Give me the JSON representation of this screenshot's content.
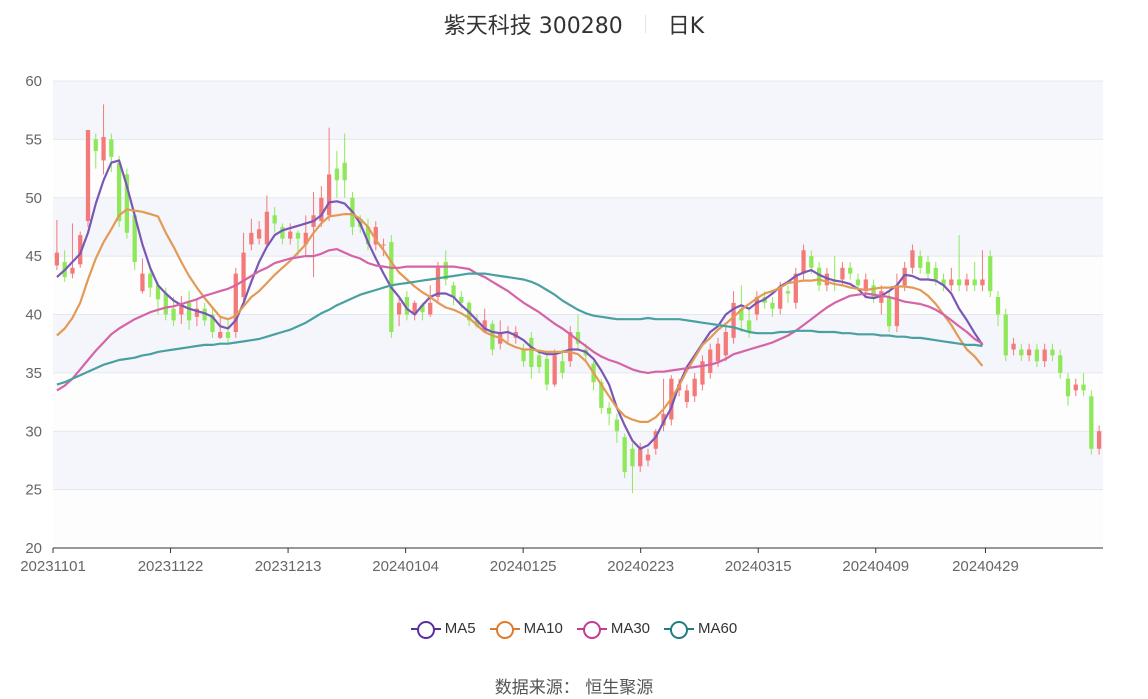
{
  "header": {
    "title": "紫天科技 300280",
    "period": "日K"
  },
  "source_text": "数据来源： 恒生聚源",
  "colors": {
    "up": "#f47a7a",
    "down": "#8fe85a",
    "grid_band": "#f4f6fb",
    "grid_line": "#e3e8f0",
    "MA5": "#7a57b6",
    "MA10": "#e39a55",
    "MA30": "#d563a8",
    "MA60": "#4aa0a0"
  },
  "legend": [
    {
      "name": "MA5",
      "color": "#5a2fa0"
    },
    {
      "name": "MA10",
      "color": "#e07a2a"
    },
    {
      "name": "MA30",
      "color": "#c43a93"
    },
    {
      "name": "MA60",
      "color": "#1f7f7f"
    }
  ],
  "chart_data": {
    "type": "candlestick",
    "ylim": [
      20,
      60
    ],
    "yticks": [
      20,
      25,
      30,
      35,
      40,
      45,
      50,
      55,
      60
    ],
    "xtick_labels": [
      "20231101",
      "20231122",
      "20231213",
      "20240104",
      "20240125",
      "20240223",
      "20240315",
      "20240409",
      "20240429"
    ],
    "xtick_index": [
      0,
      15,
      30,
      45,
      60,
      75,
      90,
      105,
      119
    ],
    "grid": true,
    "candles": [
      [
        44.2,
        45.3,
        43.8,
        48.1
      ],
      [
        44.5,
        43.2,
        42.8,
        45.5
      ],
      [
        43.5,
        44.0,
        43.1,
        47.8
      ],
      [
        44.3,
        46.8,
        44.0,
        47.1
      ],
      [
        48.0,
        55.8,
        47.5,
        55.8
      ],
      [
        55.0,
        54.0,
        52.5,
        55.5
      ],
      [
        53.2,
        55.2,
        52.0,
        58.0
      ],
      [
        55.0,
        53.5,
        52.2,
        55.5
      ],
      [
        53.0,
        48.0,
        47.5,
        53.6
      ],
      [
        52.0,
        47.0,
        46.5,
        52.5
      ],
      [
        48.5,
        44.5,
        43.8,
        49.0
      ],
      [
        42.0,
        43.5,
        41.8,
        44.8
      ],
      [
        43.5,
        42.3,
        41.5,
        44.2
      ],
      [
        42.5,
        41.3,
        40.0,
        42.8
      ],
      [
        41.8,
        40.0,
        39.5,
        42.3
      ],
      [
        40.5,
        39.5,
        39.0,
        41.5
      ],
      [
        40.0,
        41.0,
        39.2,
        41.6
      ],
      [
        41.0,
        39.5,
        38.7,
        42.0
      ],
      [
        39.8,
        40.5,
        39.0,
        41.3
      ],
      [
        40.5,
        39.5,
        39.0,
        41.0
      ],
      [
        40.0,
        38.5,
        38.0,
        40.5
      ],
      [
        38.0,
        38.5,
        37.9,
        39.8
      ],
      [
        38.5,
        38.0,
        37.5,
        39.5
      ],
      [
        38.5,
        43.5,
        38.0,
        44.0
      ],
      [
        41.5,
        45.3,
        41.0,
        47.0
      ],
      [
        46.0,
        47.0,
        45.5,
        48.2
      ],
      [
        46.5,
        47.3,
        46.0,
        48.0
      ],
      [
        46.0,
        48.8,
        45.8,
        50.2
      ],
      [
        48.5,
        47.8,
        47.0,
        49.2
      ],
      [
        47.5,
        46.5,
        46.0,
        47.8
      ],
      [
        46.5,
        47.1,
        46.0,
        47.8
      ],
      [
        47.0,
        46.5,
        45.0,
        47.2
      ],
      [
        46.0,
        47.0,
        45.0,
        48.5
      ],
      [
        47.5,
        48.5,
        43.2,
        50.5
      ],
      [
        48.0,
        50.0,
        47.5,
        51.0
      ],
      [
        48.5,
        52.0,
        48.0,
        56.0
      ],
      [
        52.5,
        51.5,
        50.0,
        54.0
      ],
      [
        53.0,
        51.5,
        50.0,
        55.5
      ],
      [
        50.0,
        47.5,
        46.8,
        50.5
      ],
      [
        48.0,
        47.5,
        47.0,
        48.5
      ],
      [
        47.5,
        46.0,
        45.5,
        48.2
      ],
      [
        46.0,
        47.5,
        45.5,
        48.0
      ],
      [
        46.0,
        46.0,
        45.0,
        46.5
      ],
      [
        46.2,
        38.5,
        38.0,
        46.8
      ],
      [
        40.0,
        41.0,
        39.0,
        41.5
      ],
      [
        41.5,
        40.0,
        39.5,
        42.0
      ],
      [
        40.0,
        41.0,
        39.5,
        41.2
      ],
      [
        40.8,
        40.2,
        39.5,
        41.0
      ],
      [
        40.0,
        41.0,
        39.8,
        42.5
      ],
      [
        41.5,
        44.0,
        41.0,
        44.5
      ],
      [
        44.5,
        43.0,
        42.5,
        45.5
      ],
      [
        42.5,
        41.5,
        40.8,
        42.8
      ],
      [
        41.5,
        41.0,
        40.5,
        42.0
      ],
      [
        41.0,
        39.5,
        39.0,
        41.2
      ],
      [
        39.5,
        39.0,
        38.8,
        40.0
      ],
      [
        38.5,
        39.5,
        38.5,
        40.5
      ],
      [
        39.2,
        37.0,
        36.5,
        39.5
      ],
      [
        37.5,
        38.5,
        37.0,
        39.5
      ],
      [
        38.5,
        38.5,
        37.5,
        39.0
      ],
      [
        38.0,
        38.5,
        37.5,
        39.0
      ],
      [
        37.0,
        36.0,
        35.5,
        37.5
      ],
      [
        38.0,
        35.5,
        34.5,
        38.5
      ],
      [
        36.5,
        35.5,
        35.0,
        37.0
      ],
      [
        36.2,
        34.0,
        33.5,
        36.5
      ],
      [
        34.0,
        36.5,
        33.8,
        37.0
      ],
      [
        36.0,
        35.0,
        34.5,
        37.0
      ],
      [
        36.0,
        38.5,
        35.5,
        39.0
      ],
      [
        38.5,
        37.5,
        37.0,
        40.0
      ],
      [
        37.0,
        36.5,
        36.0,
        37.5
      ],
      [
        35.8,
        34.2,
        33.5,
        36.0
      ],
      [
        34.2,
        32.0,
        31.5,
        34.5
      ],
      [
        32.0,
        31.5,
        30.5,
        32.5
      ],
      [
        31.0,
        30.0,
        29.0,
        31.5
      ],
      [
        29.5,
        26.5,
        26.0,
        29.8
      ],
      [
        28.5,
        27.0,
        24.7,
        29.0
      ],
      [
        27.0,
        28.5,
        26.5,
        29.0
      ],
      [
        27.5,
        28.0,
        27.0,
        28.5
      ],
      [
        28.5,
        30.0,
        28.0,
        30.2
      ],
      [
        30.5,
        31.5,
        30.0,
        34.5
      ],
      [
        31.0,
        34.5,
        30.5,
        34.8
      ],
      [
        33.5,
        34.0,
        33.0,
        34.5
      ],
      [
        32.5,
        33.5,
        32.0,
        34.0
      ],
      [
        33.0,
        34.5,
        32.5,
        35.0
      ],
      [
        34.0,
        36.0,
        33.5,
        36.5
      ],
      [
        35.0,
        37.0,
        34.5,
        37.5
      ],
      [
        36.0,
        37.5,
        35.5,
        38.0
      ],
      [
        36.5,
        38.5,
        36.0,
        39.0
      ],
      [
        38.0,
        41.0,
        37.5,
        42.0
      ],
      [
        40.5,
        39.5,
        38.5,
        42.5
      ],
      [
        39.5,
        38.5,
        38.0,
        40.5
      ],
      [
        40.0,
        41.5,
        39.5,
        42.0
      ],
      [
        41.5,
        41.0,
        40.5,
        42.0
      ],
      [
        41.0,
        40.5,
        39.8,
        41.5
      ],
      [
        40.5,
        42.3,
        40.0,
        42.8
      ],
      [
        42.0,
        41.8,
        41.0,
        42.5
      ],
      [
        41.0,
        43.5,
        40.5,
        44.0
      ],
      [
        43.5,
        45.5,
        43.0,
        46.0
      ],
      [
        45.0,
        44.0,
        43.5,
        45.5
      ],
      [
        44.0,
        42.5,
        42.0,
        44.5
      ],
      [
        42.5,
        43.5,
        42.0,
        44.0
      ],
      [
        43.0,
        42.8,
        42.0,
        45.0
      ],
      [
        43.0,
        44.0,
        42.5,
        44.5
      ],
      [
        44.0,
        43.5,
        43.0,
        44.5
      ],
      [
        43.0,
        42.5,
        42.0,
        43.5
      ],
      [
        42.0,
        43.0,
        41.5,
        43.5
      ],
      [
        42.5,
        41.5,
        41.0,
        43.0
      ],
      [
        41.0,
        42.0,
        40.0,
        42.5
      ],
      [
        41.5,
        39.0,
        38.5,
        42.0
      ],
      [
        39.0,
        42.5,
        38.5,
        43.5
      ],
      [
        42.5,
        44.0,
        42.0,
        44.5
      ],
      [
        44.0,
        45.5,
        43.5,
        46.0
      ],
      [
        45.0,
        44.0,
        43.5,
        45.5
      ],
      [
        44.5,
        43.5,
        43.0,
        45.0
      ],
      [
        44.0,
        43.0,
        42.5,
        44.5
      ],
      [
        43.0,
        42.5,
        42.0,
        43.5
      ],
      [
        42.5,
        43.0,
        42.0,
        44.0
      ],
      [
        43.0,
        42.5,
        42.0,
        46.8
      ],
      [
        42.5,
        43.0,
        42.0,
        43.5
      ],
      [
        43.0,
        42.5,
        42.0,
        44.5
      ],
      [
        42.5,
        43.0,
        42.0,
        45.5
      ],
      [
        45.0,
        42.0,
        41.5,
        45.5
      ],
      [
        41.5,
        40.0,
        39.0,
        42.0
      ],
      [
        40.0,
        36.5,
        36.0,
        40.5
      ],
      [
        37.0,
        37.5,
        36.5,
        38.0
      ],
      [
        37.0,
        36.5,
        36.0,
        37.5
      ],
      [
        36.5,
        37.0,
        36.0,
        37.5
      ],
      [
        37.0,
        36.0,
        35.5,
        37.5
      ],
      [
        36.0,
        37.0,
        35.5,
        37.5
      ],
      [
        37.0,
        36.5,
        36.0,
        37.5
      ],
      [
        36.5,
        35.0,
        34.5,
        37.0
      ],
      [
        34.5,
        33.0,
        32.2,
        35.0
      ],
      [
        33.5,
        34.0,
        33.0,
        34.5
      ],
      [
        34.0,
        33.5,
        33.0,
        35.0
      ],
      [
        33.0,
        28.5,
        28.0,
        33.5
      ],
      [
        28.5,
        30.0,
        28.0,
        30.5
      ]
    ],
    "series": [
      {
        "name": "MA5",
        "values": [
          43.2,
          43.8,
          44.5,
          45.2,
          47.0,
          49.5,
          51.5,
          53.0,
          53.2,
          51.0,
          48.5,
          46.0,
          44.0,
          42.5,
          41.8,
          41.2,
          40.8,
          40.5,
          40.3,
          40.1,
          39.8,
          39.0,
          38.8,
          39.5,
          41.0,
          42.8,
          44.5,
          45.8,
          46.8,
          47.2,
          47.4,
          47.6,
          47.8,
          48.0,
          48.5,
          49.6,
          49.7,
          49.5,
          48.8,
          47.8,
          46.2,
          44.8,
          43.5,
          42.3,
          41.5,
          40.5,
          40.0,
          40.8,
          41.5,
          41.8,
          41.8,
          41.5,
          40.8,
          40.2,
          39.5,
          38.8,
          38.5,
          38.4,
          38.5,
          38.2,
          37.8,
          37.2,
          36.8,
          36.6,
          36.6,
          36.8,
          37.0,
          37.0,
          36.8,
          36.2,
          35.2,
          34.0,
          32.0,
          30.5,
          29.2,
          28.5,
          28.8,
          29.5,
          30.8,
          32.0,
          34.0,
          35.5,
          36.5,
          37.5,
          38.5,
          39.0,
          40.0,
          40.5,
          40.8,
          40.5,
          41.0,
          41.3,
          41.8,
          42.4,
          42.8,
          43.3,
          43.6,
          43.8,
          43.4,
          43.1,
          42.9,
          42.8,
          42.6,
          42.2,
          41.5,
          41.4,
          41.6,
          42.0,
          42.5,
          43.4,
          43.3,
          43.0,
          43.0,
          42.9,
          42.5,
          41.8,
          40.5,
          39.5,
          38.4,
          37.4
        ],
        "scale_tail": true
      },
      {
        "name": "MA10",
        "values": [
          38.2,
          38.8,
          39.7,
          41.0,
          43.0,
          44.8,
          46.2,
          47.3,
          48.5,
          49.0,
          48.9,
          48.8,
          48.6,
          48.4,
          47.0,
          45.8,
          44.5,
          43.3,
          42.3,
          41.4,
          40.6,
          39.8,
          39.6,
          39.9,
          40.7,
          41.5,
          42.0,
          42.7,
          43.4,
          44.0,
          44.6,
          45.3,
          46.0,
          47.0,
          47.8,
          48.4,
          48.5,
          48.6,
          48.6,
          48.2,
          47.5,
          46.4,
          45.5,
          44.5,
          43.6,
          43.0,
          42.4,
          41.9,
          41.5,
          41.0,
          40.6,
          40.4,
          40.1,
          39.7,
          39.1,
          38.5,
          38.2,
          38.0,
          37.5,
          37.2,
          37.0,
          37.0,
          36.9,
          36.8,
          36.8,
          36.8,
          36.8,
          36.6,
          36.0,
          35.0,
          34.0,
          33.0,
          32.0,
          31.3,
          31.0,
          30.8,
          30.8,
          31.2,
          31.9,
          32.8,
          33.9,
          35.2,
          36.3,
          37.4,
          38.0,
          38.7,
          39.2,
          39.8,
          40.4,
          40.9,
          41.4,
          41.8,
          42.0,
          42.3,
          42.7,
          42.8,
          42.9,
          42.9,
          43.0,
          42.8,
          42.6,
          42.5,
          42.3,
          42.2,
          42.1,
          42.2,
          42.3,
          42.3,
          42.4,
          42.4,
          42.3,
          42.1,
          41.6,
          40.9,
          40.0,
          39.1,
          38.0,
          37.0,
          36.4,
          35.6
        ]
      },
      {
        "name": "MA30",
        "values": [
          33.5,
          33.9,
          34.5,
          35.3,
          36.1,
          36.9,
          37.6,
          38.3,
          38.8,
          39.2,
          39.6,
          39.9,
          40.2,
          40.4,
          40.6,
          40.7,
          40.9,
          41.1,
          41.3,
          41.6,
          41.8,
          42.0,
          42.2,
          42.5,
          42.9,
          43.3,
          43.7,
          44.0,
          44.4,
          44.6,
          44.8,
          44.9,
          45.0,
          45.0,
          45.2,
          45.5,
          45.6,
          45.3,
          45.0,
          44.8,
          44.4,
          44.2,
          44.1,
          44.0,
          44.0,
          44.1,
          44.1,
          44.1,
          44.1,
          44.1,
          44.1,
          44.1,
          44.0,
          43.9,
          43.5,
          43.2,
          42.8,
          42.4,
          42.0,
          41.5,
          41.0,
          40.6,
          40.2,
          39.7,
          39.2,
          38.8,
          38.3,
          37.8,
          37.3,
          36.8,
          36.4,
          36.1,
          35.9,
          35.6,
          35.3,
          35.1,
          35.0,
          35.1,
          35.1,
          35.2,
          35.3,
          35.4,
          35.5,
          35.6,
          35.7,
          35.9,
          36.2,
          36.6,
          36.8,
          37.0,
          37.2,
          37.4,
          37.6,
          37.9,
          38.2,
          38.6,
          39.1,
          39.6,
          40.1,
          40.6,
          41.0,
          41.3,
          41.6,
          41.7,
          41.8,
          41.7,
          41.6,
          41.5,
          41.3,
          41.1,
          41.0,
          40.9,
          40.7,
          40.4,
          40.0,
          39.5,
          39.0,
          38.5,
          37.9,
          37.5
        ]
      },
      {
        "name": "MA60",
        "values": [
          34.0,
          34.2,
          34.5,
          34.8,
          35.1,
          35.4,
          35.7,
          35.9,
          36.1,
          36.2,
          36.3,
          36.5,
          36.6,
          36.8,
          36.9,
          37.0,
          37.1,
          37.2,
          37.3,
          37.4,
          37.4,
          37.5,
          37.5,
          37.6,
          37.7,
          37.8,
          37.9,
          38.1,
          38.3,
          38.5,
          38.7,
          39.0,
          39.3,
          39.7,
          40.1,
          40.4,
          40.8,
          41.1,
          41.4,
          41.7,
          41.9,
          42.1,
          42.3,
          42.5,
          42.6,
          42.7,
          42.8,
          42.9,
          43.0,
          43.1,
          43.2,
          43.3,
          43.4,
          43.5,
          43.5,
          43.5,
          43.4,
          43.3,
          43.2,
          43.1,
          43.0,
          42.8,
          42.5,
          42.1,
          41.7,
          41.2,
          40.8,
          40.4,
          40.1,
          39.9,
          39.8,
          39.7,
          39.6,
          39.6,
          39.6,
          39.6,
          39.7,
          39.6,
          39.6,
          39.6,
          39.6,
          39.5,
          39.4,
          39.3,
          39.2,
          39.1,
          39.0,
          38.9,
          38.7,
          38.5,
          38.4,
          38.4,
          38.4,
          38.5,
          38.5,
          38.6,
          38.6,
          38.6,
          38.5,
          38.5,
          38.5,
          38.4,
          38.4,
          38.3,
          38.3,
          38.3,
          38.2,
          38.2,
          38.1,
          38.1,
          38.0,
          38.0,
          37.9,
          37.8,
          37.7,
          37.6,
          37.5,
          37.4,
          37.4,
          37.3
        ]
      }
    ]
  }
}
